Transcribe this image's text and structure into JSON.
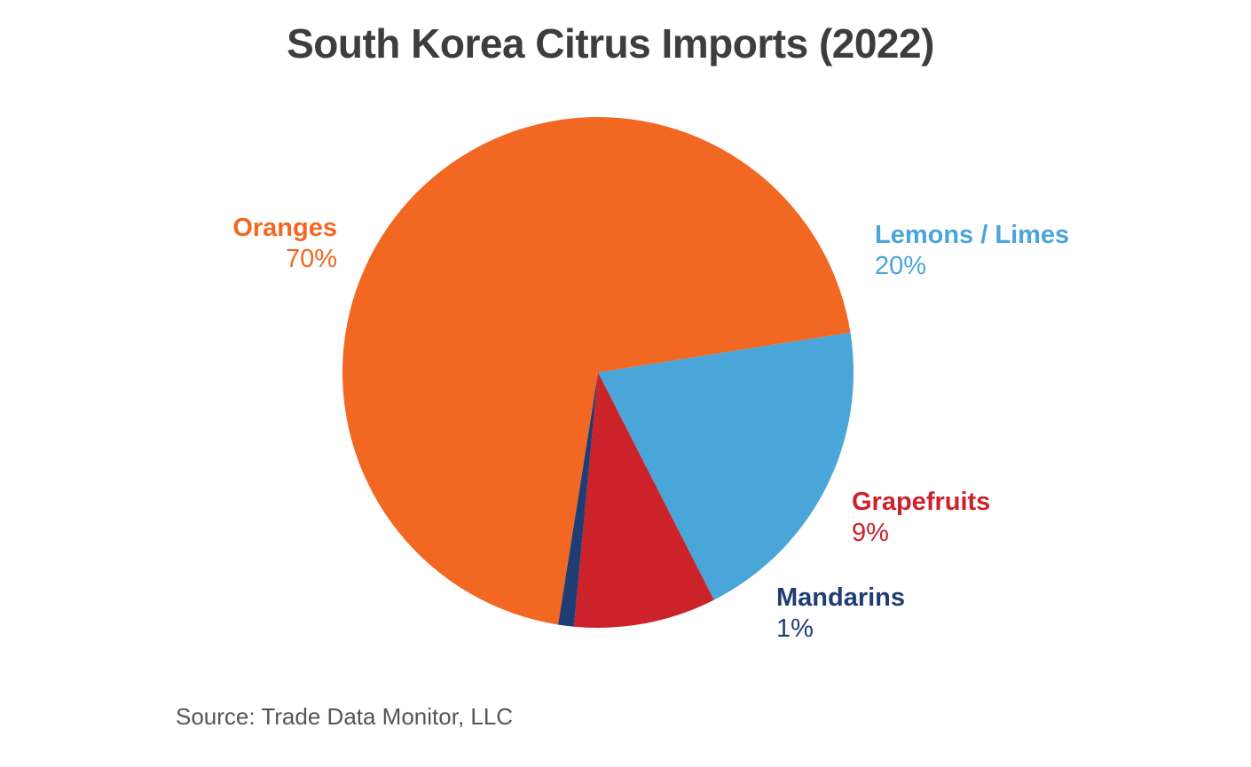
{
  "chart_data": {
    "type": "pie",
    "title": "South Korea Citrus Imports (2022)",
    "slices": [
      {
        "name": "Oranges",
        "value": 70,
        "label": "70%",
        "color": "#F26722"
      },
      {
        "name": "Lemons / Limes",
        "value": 20,
        "label": "20%",
        "color": "#4AA5D9"
      },
      {
        "name": "Grapefruits",
        "value": 9,
        "label": "9%",
        "color": "#CC2229"
      },
      {
        "name": "Mandarins",
        "value": 1,
        "label": "1%",
        "color": "#1F3D73"
      }
    ],
    "source": "Source: Trade Data Monitor, LLC"
  }
}
